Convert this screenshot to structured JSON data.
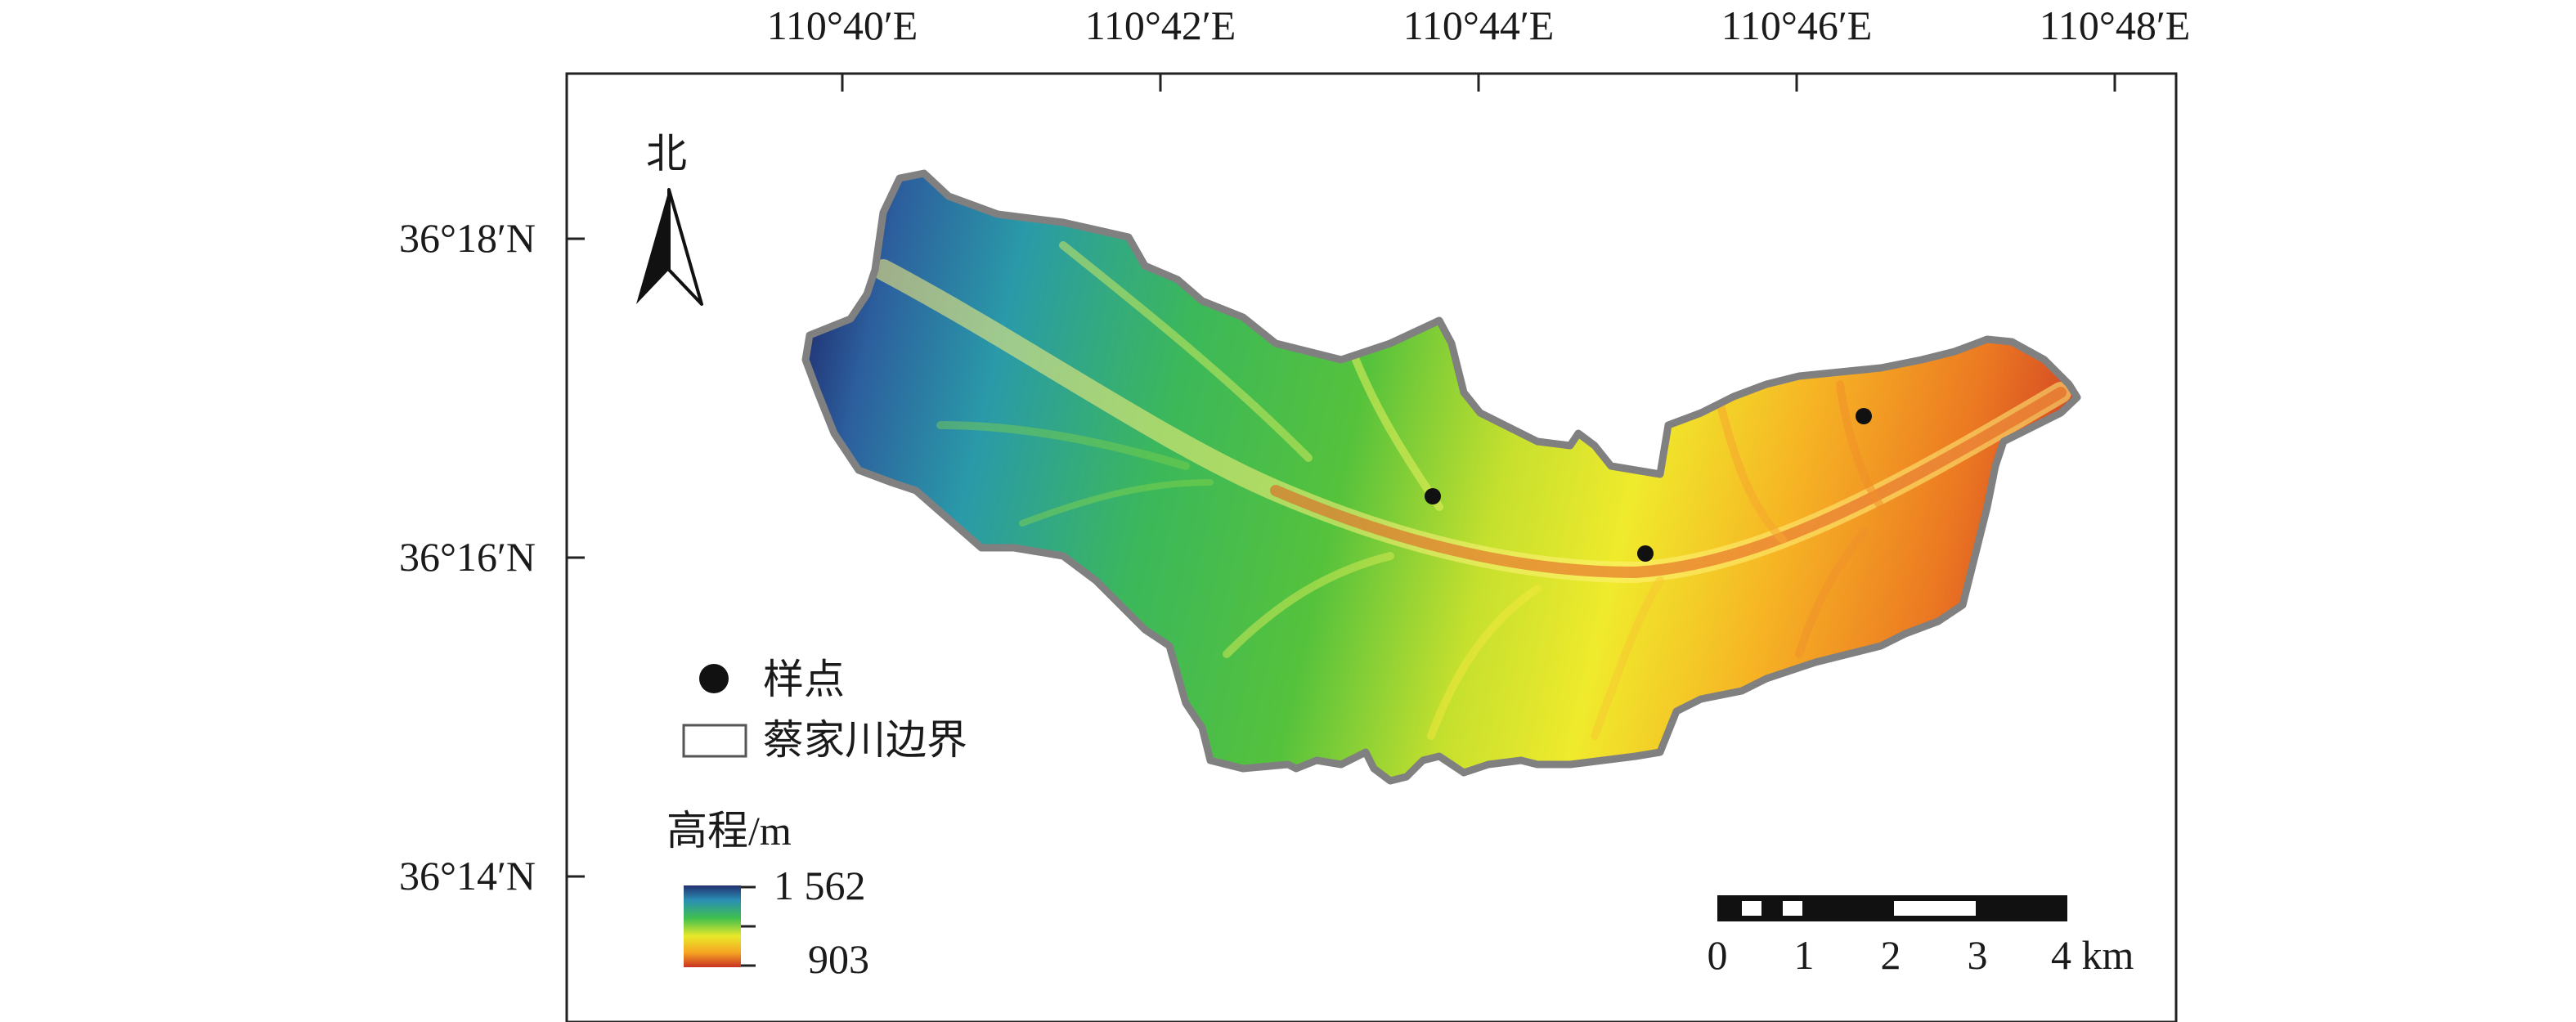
{
  "map": {
    "north_label": "北",
    "axes": {
      "lon_ticks": [
        "110°40′E",
        "110°42′E",
        "110°44′E",
        "110°46′E",
        "110°48′E"
      ],
      "lat_ticks": [
        "36°18′N",
        "36°16′N",
        "36°14′N"
      ]
    },
    "legend": {
      "sample_label": "样点",
      "boundary_label": "蔡家川边界",
      "elevation_title": "高程/m",
      "elevation_max": "1 562",
      "elevation_min": "903",
      "elevation_colors": [
        "#22306e",
        "#2a8fb5",
        "#3fbf4e",
        "#e9e92a",
        "#f5a522",
        "#c83222"
      ]
    },
    "scale_bar": {
      "labels": [
        "0",
        "1",
        "2",
        "3",
        "4 km"
      ]
    },
    "sample_points": [
      {
        "lon": "110°43.7′E",
        "lat": "36°16.4′N"
      },
      {
        "lon": "110°45.0′E",
        "lat": "36°16.0′N"
      },
      {
        "lon": "110°46.4′E",
        "lat": "36°16.9′N"
      }
    ],
    "boundary_color": "#808080"
  }
}
